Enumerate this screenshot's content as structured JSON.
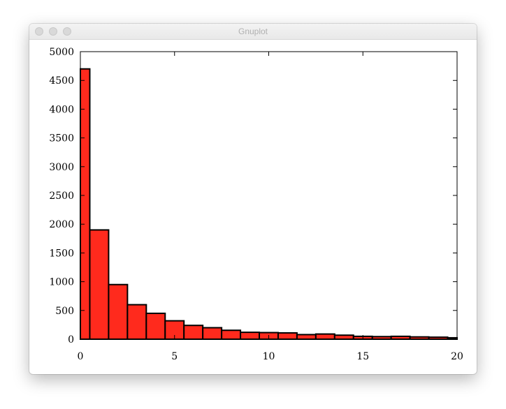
{
  "window": {
    "title": "Gnuplot"
  },
  "chart_data": {
    "type": "bar",
    "title": "",
    "xlabel": "",
    "ylabel": "",
    "bin_width": 1,
    "bin_starts": [
      0,
      0.5,
      1.5,
      2.5,
      3.5,
      4.5,
      5.5,
      6.5,
      7.5,
      8.5,
      9.5,
      10.5,
      11.5,
      12.5,
      13.5,
      14.5,
      15.5,
      16.5,
      17.5,
      18.5,
      19.5
    ],
    "bin_ends": [
      0.5,
      1.5,
      2.5,
      3.5,
      4.5,
      5.5,
      6.5,
      7.5,
      8.5,
      9.5,
      10.5,
      11.5,
      12.5,
      13.5,
      14.5,
      15.5,
      16.5,
      17.5,
      18.5,
      19.5,
      20
    ],
    "values": [
      4700,
      1900,
      950,
      600,
      450,
      320,
      240,
      200,
      155,
      120,
      115,
      110,
      80,
      90,
      70,
      50,
      45,
      50,
      40,
      35,
      25
    ],
    "xlim": [
      0,
      20
    ],
    "ylim": [
      0,
      5000
    ],
    "xticks": [
      "0",
      "5",
      "10",
      "15",
      "20"
    ],
    "yticks": [
      "0",
      "500",
      "1000",
      "1500",
      "2000",
      "2500",
      "3000",
      "3500",
      "4000",
      "4500",
      "5000"
    ],
    "grid": false,
    "bar_color": "#ff2a1d"
  }
}
